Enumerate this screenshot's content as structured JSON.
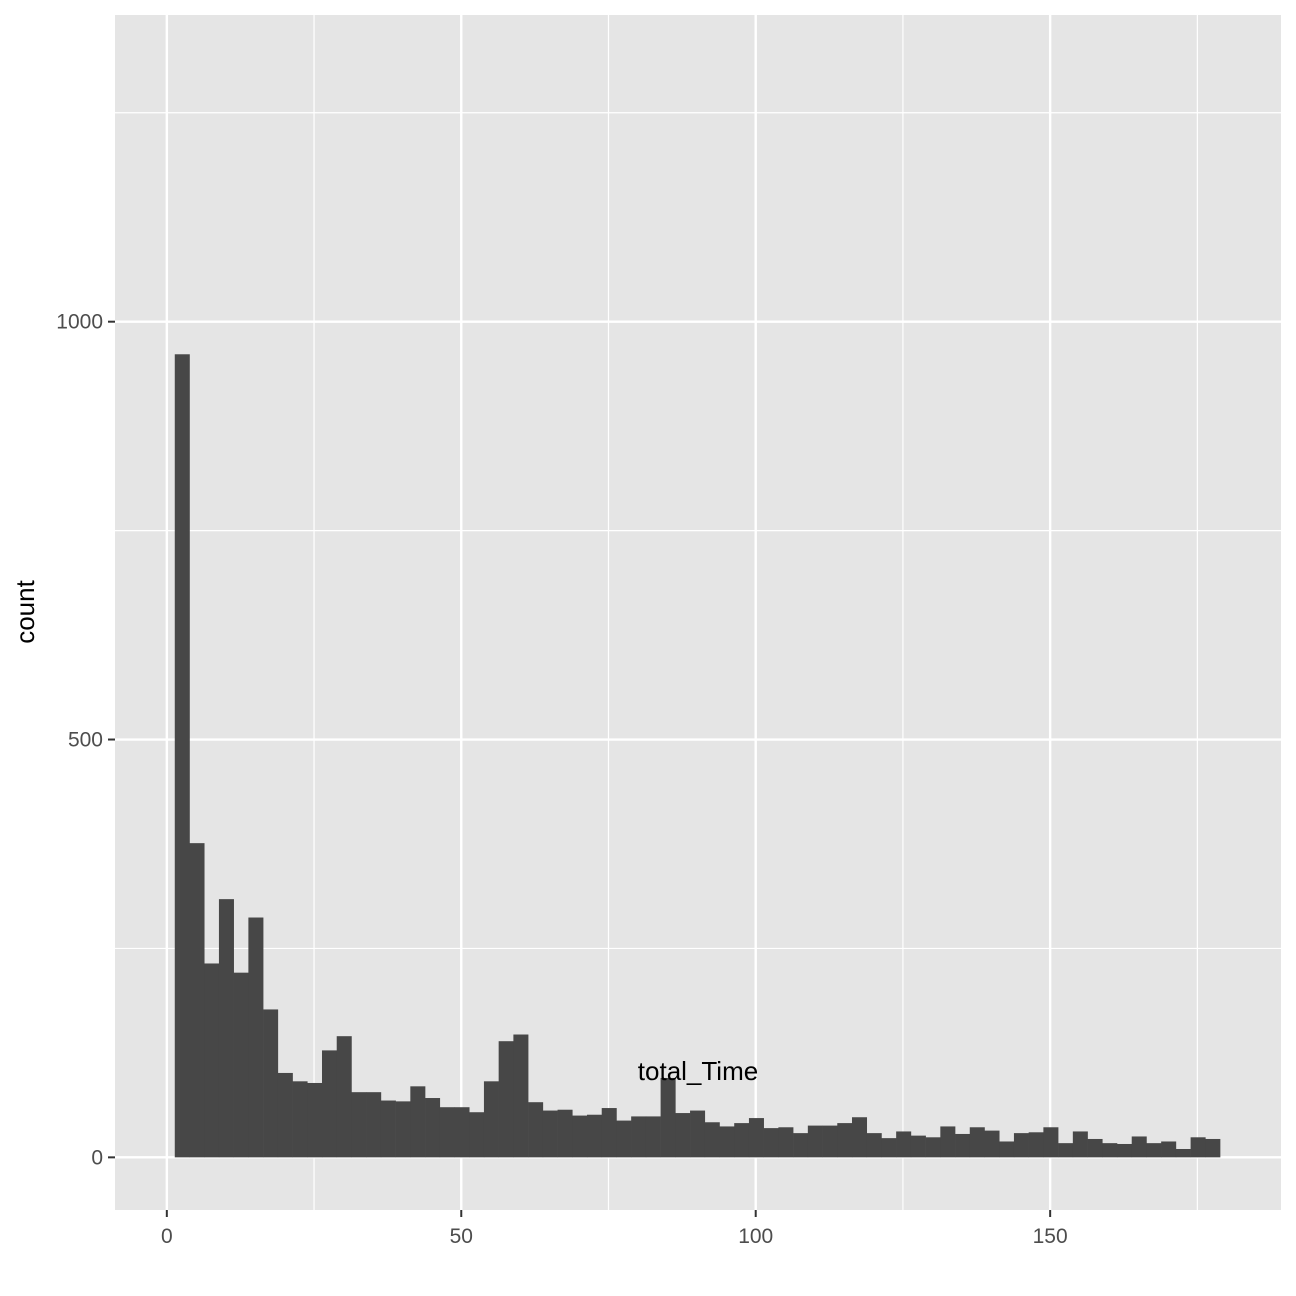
{
  "chart_data": {
    "type": "bar",
    "subtype": "histogram",
    "title": "",
    "xlabel": "total_Time",
    "ylabel": "count",
    "xlim": [
      -8.8,
      189.2
    ],
    "ylim": [
      -63,
      1367
    ],
    "x_ticks": [
      0,
      50,
      100,
      150
    ],
    "y_ticks": [
      0,
      500,
      1000
    ],
    "x_tick_labels": [
      "0",
      "50",
      "100",
      "150"
    ],
    "y_tick_labels": [
      "0",
      "500",
      "1000"
    ],
    "grid": true,
    "bin_start": 1.35,
    "bin_width": 2.5,
    "values": [
      961,
      376,
      232,
      309,
      221,
      287,
      177,
      101,
      91,
      89,
      128,
      145,
      78,
      78,
      68,
      67,
      85,
      71,
      60,
      60,
      54,
      91,
      139,
      147,
      66,
      56,
      57,
      50,
      51,
      59,
      44,
      49,
      49,
      95,
      53,
      56,
      42,
      37,
      41,
      47,
      35,
      36,
      29,
      38,
      38,
      41,
      48,
      29,
      23,
      31,
      26,
      24,
      37,
      28,
      36,
      32,
      19,
      29,
      30,
      36,
      17,
      31,
      22,
      17,
      16,
      25,
      17,
      19,
      10,
      24,
      22
    ],
    "colors": {
      "bar": "#474747",
      "panel": "#e5e5e5",
      "grid": "#ffffff",
      "text": "#4d4d4d"
    }
  }
}
